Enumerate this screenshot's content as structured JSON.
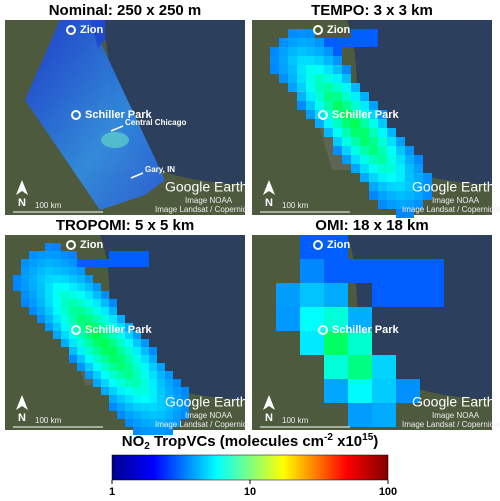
{
  "panels": [
    {
      "title": "Nominal: 250 x 250 m",
      "places": [
        "Zion",
        "Schiller Park",
        "Central Chicago",
        "Gary, IN"
      ],
      "watermark": "Google Earth",
      "scale": "100 km",
      "credits": [
        "Image NOAA",
        "Image Landsat / Copernicus"
      ],
      "north": "N"
    },
    {
      "title": "TEMPO: 3 x 3 km",
      "places": [
        "Zion",
        "Schiller Park"
      ],
      "watermark": "Google Earth",
      "scale": "100 km",
      "credits": [
        "Image NOAA",
        "Image Landsat / Copernicus"
      ],
      "north": "N"
    },
    {
      "title": "TROPOMI: 5 x 5 km",
      "places": [
        "Zion",
        "Schiller Park"
      ],
      "watermark": "Google Earth",
      "scale": "100 km",
      "credits": [
        "Image NOAA",
        "Image Landsat / Copernicus"
      ],
      "north": "N"
    },
    {
      "title": "OMI: 18 x 18 km",
      "places": [
        "Zion",
        "Schiller Park"
      ],
      "watermark": "Google Earth",
      "scale": "100 km",
      "credits": [
        "Image NOAA",
        "Image Landsat / Copernicus"
      ],
      "north": "N"
    }
  ],
  "colorbar": {
    "title": {
      "main": "NO",
      "sub": "2",
      "rest": " TropVCs (molecules cm",
      "sup1": "-2",
      "rest2": " x10",
      "sup2": "15",
      "end": ")"
    },
    "scale": "log",
    "lim": [
      1,
      100
    ],
    "ticks": [
      1,
      10,
      100
    ]
  }
}
